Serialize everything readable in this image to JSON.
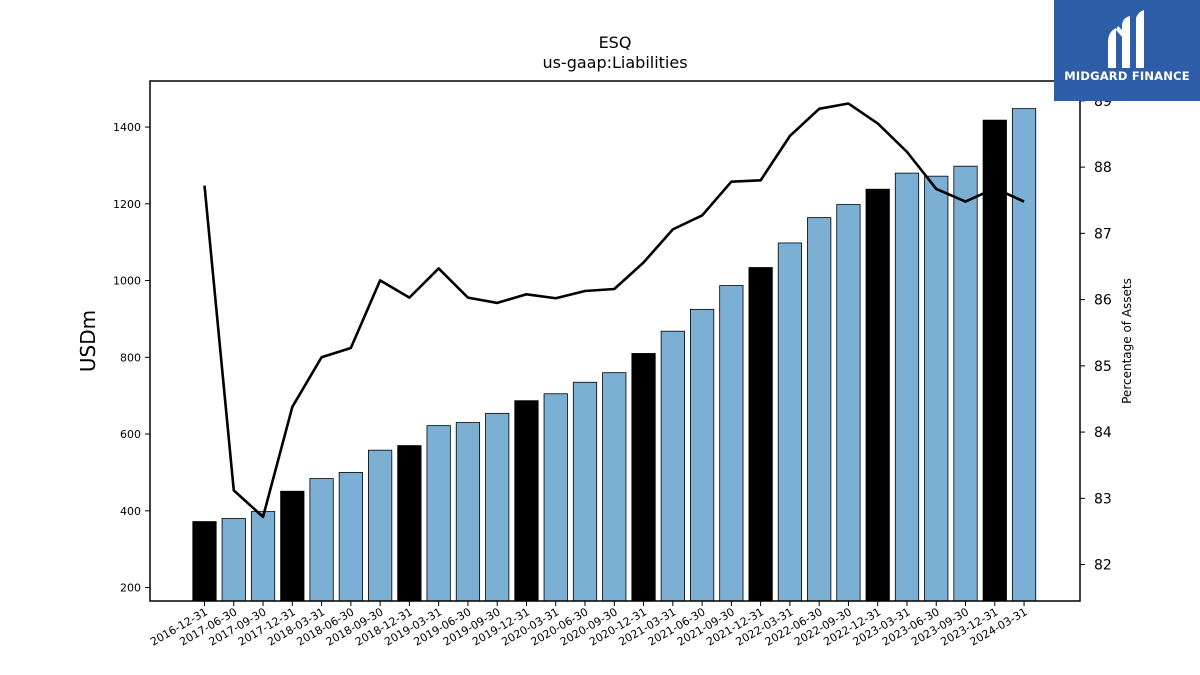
{
  "logo": {
    "text": "MIDGARD FINANCE",
    "icon": "midgard-logo-icon",
    "background": "#2f5ea8"
  },
  "chart_data": {
    "type": "bar",
    "title": "ESQ",
    "subtitle": "us-gaap:Liabilities",
    "ylabel": "USDm",
    "y2label": "Percentage of Assets",
    "ylim": [
      165,
      1520
    ],
    "y2lim": [
      81.45,
      89.3
    ],
    "yticks": [
      200,
      400,
      600,
      800,
      1000,
      1200,
      1400
    ],
    "y2ticks": [
      82,
      83,
      84,
      85,
      86,
      87,
      88,
      89
    ],
    "categories": [
      "2016-12-31",
      "2017-06-30",
      "2017-09-30",
      "2017-12-31",
      "2018-03-31",
      "2018-06-30",
      "2018-09-30",
      "2018-12-31",
      "2019-03-31",
      "2019-06-30",
      "2019-09-30",
      "2019-12-31",
      "2020-03-31",
      "2020-06-30",
      "2020-09-30",
      "2020-12-31",
      "2021-03-31",
      "2021-06-30",
      "2021-09-30",
      "2021-12-31",
      "2022-03-31",
      "2022-06-30",
      "2022-09-30",
      "2022-12-31",
      "2023-03-31",
      "2023-06-30",
      "2023-09-30",
      "2023-12-31",
      "2024-03-31"
    ],
    "series": [
      {
        "type": "bar",
        "values": [
          372,
          380,
          398,
          451,
          484,
          500,
          558,
          570,
          622,
          630,
          654,
          687,
          705,
          735,
          760,
          810,
          868,
          925,
          987,
          1034,
          1098,
          1164,
          1198,
          1238,
          1280,
          1272,
          1298,
          1418,
          1448
        ],
        "fiscal_year_end": [
          true,
          false,
          false,
          true,
          false,
          false,
          false,
          true,
          false,
          false,
          false,
          true,
          false,
          false,
          false,
          true,
          false,
          false,
          false,
          true,
          false,
          false,
          false,
          true,
          false,
          false,
          false,
          true,
          false
        ]
      },
      {
        "type": "line",
        "axis": "right",
        "values": [
          87.72,
          83.12,
          82.72,
          84.38,
          85.13,
          85.27,
          86.29,
          86.03,
          86.47,
          86.03,
          85.95,
          86.08,
          86.02,
          86.13,
          86.16,
          86.56,
          87.06,
          87.27,
          87.78,
          87.8,
          88.47,
          88.88,
          88.96,
          88.66,
          88.23,
          87.67,
          87.48,
          87.68,
          87.48
        ]
      }
    ],
    "colors": {
      "bar": "#7bafd4",
      "bar_fiscal_year_end": "#000000",
      "line": "#000000"
    },
    "grid": false
  }
}
